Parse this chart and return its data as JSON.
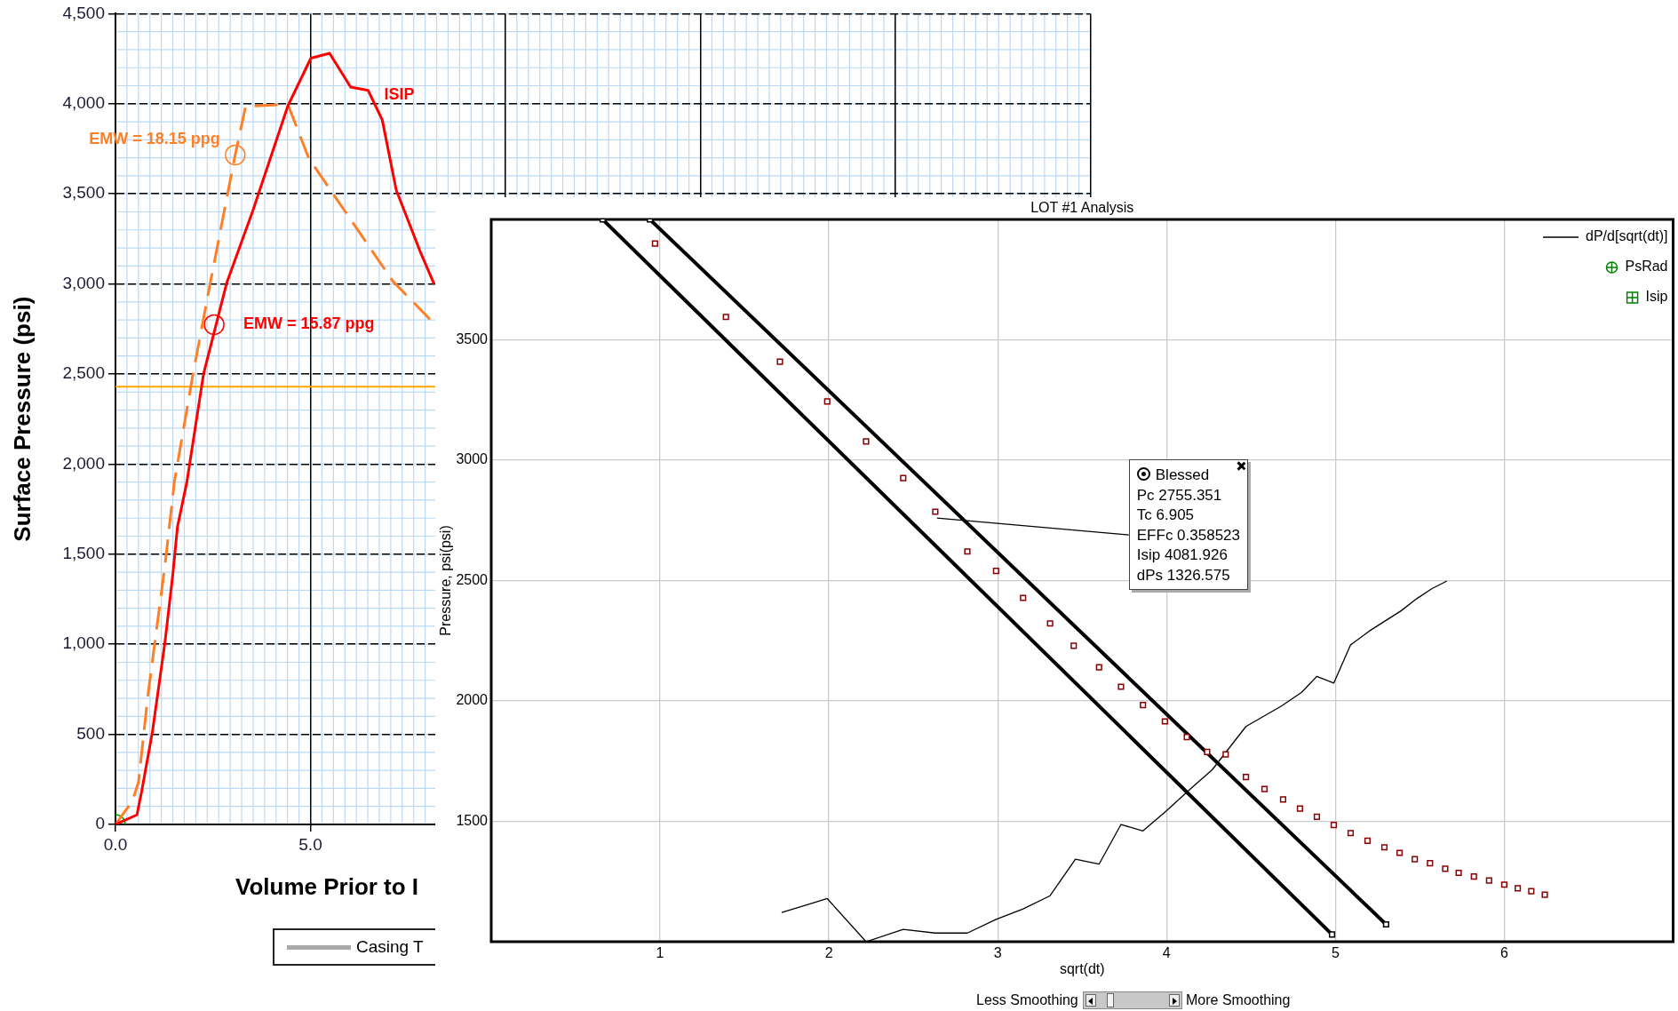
{
  "chart_data": [
    {
      "type": "line",
      "xlabel": "Volume Prior to I",
      "ylabel": "Surface Pressure (psi)",
      "xlim": [
        0,
        25
      ],
      "xticks": [
        {
          "value": 0,
          "label": "0.0"
        },
        {
          "value": 5,
          "label": "5.0"
        },
        {
          "value": 10,
          "label": null
        },
        {
          "value": 15,
          "label": null
        },
        {
          "value": 20,
          "label": null
        },
        {
          "value": 25,
          "label": null
        }
      ],
      "ylim": [
        0,
        4500
      ],
      "yticks": [
        0,
        500,
        {
          "value": 1000,
          "label": "1,000"
        },
        {
          "value": 1500,
          "label": "1,500"
        },
        {
          "value": 2000,
          "label": "2,000"
        },
        {
          "value": 2500,
          "label": "2,500"
        },
        {
          "value": 3000,
          "label": "3,000"
        },
        {
          "value": 3500,
          "label": "3,500"
        },
        {
          "value": 4000,
          "label": "4,000"
        },
        {
          "value": 4500,
          "label": "4,500"
        }
      ],
      "grid": true,
      "legend": "bottom",
      "ref_lines": [
        {
          "axis": "y",
          "value": 2430,
          "color": "#ffa500"
        }
      ],
      "annotations": [
        {
          "text": "ISIP",
          "x": 6.48,
          "y": 4074
        },
        {
          "text": "EMW = 18.15 ppg",
          "x": 3.07,
          "y": 3716
        },
        {
          "text": "EMW = 15.87 ppg",
          "x": 2.53,
          "y": 2774
        }
      ],
      "series": [
        {
          "color": "#ff0000",
          "marker": "none",
          "x": [
            0,
            0.55,
            0.67,
            0.95,
            1.27,
            1.47,
            1.59,
            1.83,
            2.26,
            2.85,
            3.52,
            4.42,
            5.01,
            5.49,
            6.03,
            6.48,
            6.84,
            7.2,
            7.83,
            8.17
          ],
          "values": [
            0,
            53,
            181,
            518,
            1014,
            1387,
            1652,
            1900,
            2502,
            3004,
            3405,
            3988,
            4253,
            4280,
            4093,
            4074,
            3911,
            3521,
            3171,
            3000
          ]
        },
        {
          "color": "#ff7f27",
          "marker": "none",
          "line_style": "dashed",
          "x": [
            0,
            0.43,
            0.59,
            0.83,
            1.27,
            1.51,
            1.99,
            2.44,
            3.07,
            3.34,
            3.52,
            4.42,
            4.96,
            7.11,
            8.17
          ],
          "values": [
            0,
            128,
            234,
            713,
            1440,
            1901,
            2502,
            3016,
            3716,
            3988,
            3988,
            3996,
            3696,
            3016,
            2780
          ]
        },
        {
          "type": "scatter",
          "color": "#ff7f27",
          "marker": "circle",
          "x": [
            3.07
          ],
          "values": [
            3716
          ]
        },
        {
          "type": "scatter",
          "color": "#ff0000",
          "marker": "circle",
          "x": [
            2.53
          ],
          "values": [
            2774
          ]
        },
        {
          "type": "scatter",
          "color": "#00a000",
          "marker": "circle",
          "x": [
            0
          ],
          "values": [
            0
          ]
        },
        {
          "name": "Casing T",
          "color": "#aaaaaa",
          "marker": "none"
        }
      ]
    },
    {
      "type": "scatter",
      "title": "LOT #1 Analysis",
      "xlabel": "sqrt(dt)",
      "ylabel": "Pressure, psi(psi)",
      "xlim": [
        0,
        7
      ],
      "xticks": [
        1,
        2,
        3,
        4,
        5,
        6
      ],
      "ylim": [
        1000,
        4000
      ],
      "yticks": [
        1500,
        2000,
        2500,
        3000,
        3500
      ],
      "grid": true,
      "legend": "top right",
      "annotations": [
        {
          "text": "Blessed\nPc 2755.351\nTc 6.905\nEFFc 0.358523\nIsip 4081.926\ndPs 1326.575",
          "x": 2.64,
          "y": 2760
        },
        "Less Smoothing",
        "More Smoothing"
      ],
      "series": [
        {
          "color": "#8b0000",
          "marker": "square",
          "x": [
            0.97,
            1.39,
            1.71,
            1.99,
            2.22,
            2.44,
            2.63,
            2.82,
            2.99,
            3.15,
            3.31,
            3.45,
            3.6,
            3.73,
            3.86,
            3.99,
            4.12,
            4.24,
            4.35,
            4.47,
            4.58,
            4.69,
            4.79,
            4.89,
            4.99,
            5.09,
            5.19,
            5.29,
            5.38,
            5.47,
            5.56,
            5.65,
            5.73,
            5.82,
            5.91,
            6.0,
            6.08,
            6.16,
            6.24
          ],
          "values": [
            3900,
            3595,
            3409,
            3244,
            3078,
            2926,
            2786,
            2621,
            2540,
            2428,
            2322,
            2229,
            2140,
            2059,
            1983,
            1915,
            1850,
            1788,
            1778,
            1684,
            1634,
            1591,
            1553,
            1519,
            1485,
            1451,
            1419,
            1392,
            1369,
            1343,
            1326,
            1303,
            1286,
            1271,
            1254,
            1237,
            1222,
            1210,
            1195
          ]
        },
        {
          "type": "line",
          "color": "#000000",
          "marker": "square",
          "x": [
            0.66,
            4.98
          ],
          "values": [
            4000,
            1030
          ]
        },
        {
          "type": "line",
          "color": "#000000",
          "marker": "square",
          "x": [
            0.94,
            5.3
          ],
          "values": [
            4000,
            1072
          ]
        },
        {
          "type": "line",
          "name": "dP/d[sqrt(dt)]",
          "color": "#000000",
          "marker": "none",
          "x": [
            1.72,
            1.99,
            2.22,
            2.44,
            2.63,
            2.82,
            2.99,
            3.15,
            3.31,
            3.46,
            3.6,
            3.73,
            3.86,
            4.0,
            4.15,
            4.27,
            4.47,
            4.68,
            4.8,
            4.89,
            4.99,
            5.09,
            5.2,
            5.39,
            5.48,
            5.57,
            5.66
          ],
          "values": [
            1121,
            1179,
            1000,
            1051,
            1036,
            1036,
            1093,
            1136,
            1191,
            1343,
            1322,
            1487,
            1460,
            1544,
            1640,
            1714,
            1894,
            1979,
            2036,
            2102,
            2074,
            2233,
            2290,
            2375,
            2424,
            2466,
            2498
          ]
        },
        {
          "name": "PsRad",
          "color": "#008000",
          "marker": "circle"
        },
        {
          "name": "Isip",
          "color": "#008000",
          "marker": "square"
        }
      ]
    }
  ]
}
